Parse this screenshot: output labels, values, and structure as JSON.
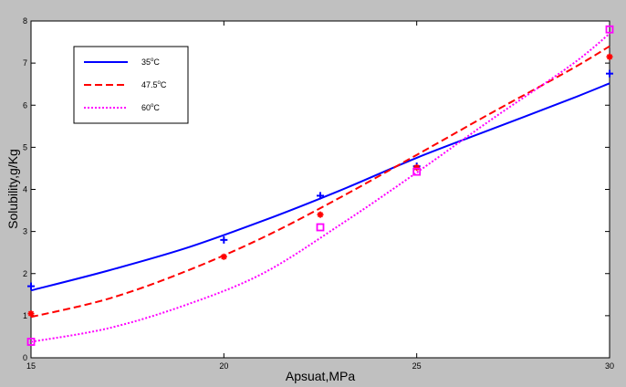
{
  "chart_data": {
    "type": "line",
    "xlabel": "Apsuat,MPa",
    "ylabel": "Solubility,g/Kg",
    "xlim": [
      15,
      30
    ],
    "ylim": [
      0,
      8
    ],
    "xticks": [
      "15",
      "20",
      "25",
      "30"
    ],
    "yticks": [
      "0",
      "1",
      "2",
      "3",
      "4",
      "5",
      "6",
      "7",
      "8"
    ],
    "grid": false,
    "legend_placement": "top-left",
    "series": [
      {
        "name": "35°C",
        "legend_base": "35",
        "legend_sup": "o",
        "legend_unit": "C",
        "color": "#0000ff",
        "line_style": "solid",
        "marker": "plus",
        "fit_x": [
          15,
          17,
          19,
          21,
          23,
          25,
          27,
          29,
          30
        ],
        "fit_y": [
          1.6,
          2.07,
          2.6,
          3.25,
          3.97,
          4.75,
          5.45,
          6.15,
          6.52
        ],
        "points_x": [
          15,
          20,
          22.5,
          25,
          30
        ],
        "points_y": [
          1.7,
          2.8,
          3.85,
          4.55,
          6.75
        ]
      },
      {
        "name": "47.5°C",
        "legend_base": "47.5",
        "legend_sup": "o",
        "legend_unit": "C",
        "color": "#ff0000",
        "line_style": "dashed",
        "marker": "star",
        "fit_x": [
          15,
          17,
          19,
          21,
          23,
          25,
          27,
          29,
          30
        ],
        "fit_y": [
          0.97,
          1.4,
          2.05,
          2.85,
          3.8,
          4.82,
          5.85,
          6.85,
          7.4
        ],
        "points_x": [
          15,
          20,
          22.5,
          25,
          30
        ],
        "points_y": [
          1.05,
          2.4,
          3.4,
          4.52,
          7.15
        ]
      },
      {
        "name": "60°C",
        "legend_base": "60",
        "legend_sup": "o",
        "legend_unit": "C",
        "color": "#ff00ff",
        "line_style": "dotted",
        "marker": "square",
        "fit_x": [
          15,
          17,
          19,
          21,
          23,
          25,
          27,
          29,
          30
        ],
        "fit_y": [
          0.38,
          0.7,
          1.25,
          2.0,
          3.15,
          4.4,
          5.7,
          6.95,
          7.7
        ],
        "points_x": [
          15,
          22.5,
          25,
          30
        ],
        "points_y": [
          0.38,
          3.1,
          4.42,
          7.8
        ]
      }
    ]
  }
}
